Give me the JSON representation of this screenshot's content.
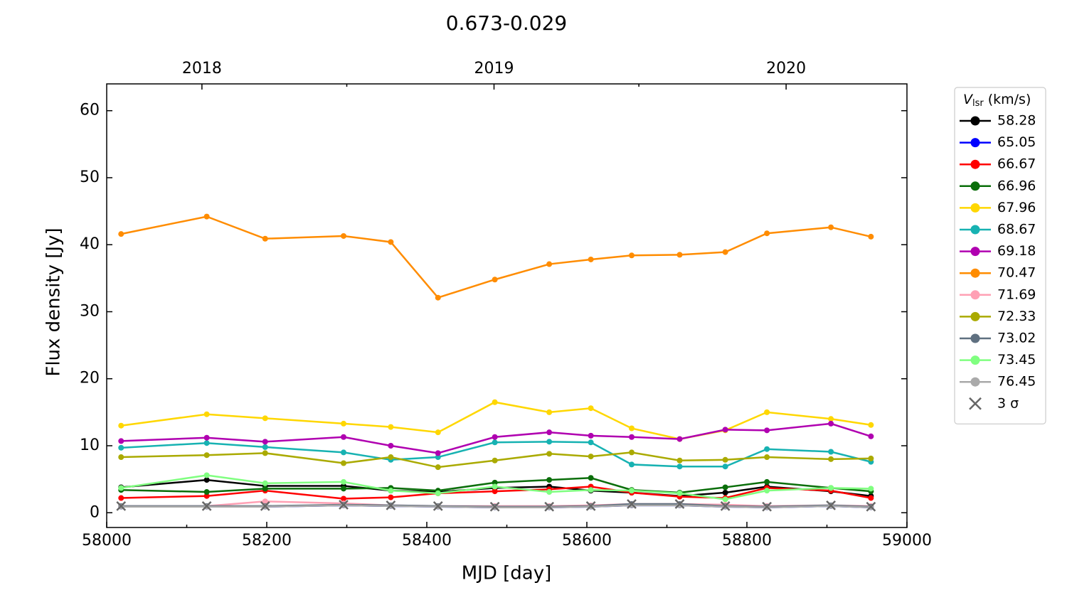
{
  "chart_data": {
    "type": "line",
    "title": "0.673-0.029",
    "x_label": "MJD [day]",
    "y_label": "Flux density [Jy]",
    "legend_title": {
      "symbol": "V",
      "subscript": "lsr",
      "unit": "(km/s)"
    },
    "legend_position": "outside right",
    "xlim": [
      58000,
      59000
    ],
    "xticks": [
      58000,
      58200,
      58400,
      58600,
      58800,
      59000
    ],
    "xminor_ticks": [
      58100,
      58300,
      58500,
      58700,
      58900
    ],
    "x2ticks": [
      {
        "value": 58119,
        "label": "2018"
      },
      {
        "value": 58484,
        "label": "2019"
      },
      {
        "value": 58849,
        "label": "2020"
      }
    ],
    "x2minor_ticks": [
      58300,
      58665
    ],
    "ylim": [
      -2.2,
      64
    ],
    "yticks": [
      0,
      10,
      20,
      30,
      40,
      50,
      60
    ],
    "x": [
      58018,
      58125,
      58198,
      58296,
      58355,
      58414,
      58485,
      58553,
      58605,
      58656,
      58716,
      58773,
      58825,
      58905,
      58955
    ],
    "series": [
      {
        "name": "58.28",
        "color": "#000000",
        "values": [
          3.8,
          4.9,
          4.0,
          4.0,
          3.3,
          3.1,
          3.7,
          3.9,
          3.3,
          3.0,
          2.5,
          3.0,
          3.9,
          3.2,
          2.5
        ]
      },
      {
        "name": "65.05",
        "color": "#0000ff",
        "values": [
          0.9,
          0.9,
          0.9,
          1.1,
          1.0,
          0.9,
          0.8,
          0.8,
          0.9,
          1.1,
          1.1,
          0.9,
          0.8,
          1.0,
          0.8
        ]
      },
      {
        "name": "66.67",
        "color": "#ff0000",
        "values": [
          2.2,
          2.5,
          3.3,
          2.1,
          2.3,
          2.9,
          3.2,
          3.5,
          3.9,
          3.0,
          2.4,
          2.2,
          3.7,
          3.3,
          2.2
        ]
      },
      {
        "name": "66.96",
        "color": "#0a6e0a",
        "values": [
          3.4,
          3.1,
          3.6,
          3.6,
          3.7,
          3.3,
          4.5,
          4.9,
          5.2,
          3.4,
          3.0,
          3.8,
          4.6,
          3.7,
          3.2
        ]
      },
      {
        "name": "67.96",
        "color": "#ffd700",
        "values": [
          13.0,
          14.7,
          14.1,
          13.3,
          12.8,
          12.0,
          16.5,
          15.0,
          15.6,
          12.6,
          11.0,
          12.3,
          15.0,
          14.0,
          13.1
        ]
      },
      {
        "name": "68.67",
        "color": "#17b2b2",
        "values": [
          9.7,
          10.4,
          9.8,
          9.0,
          7.9,
          8.3,
          10.5,
          10.6,
          10.5,
          7.2,
          6.9,
          6.9,
          9.5,
          9.1,
          7.6
        ]
      },
      {
        "name": "69.18",
        "color": "#b000b0",
        "values": [
          10.7,
          11.2,
          10.6,
          11.3,
          10.0,
          8.9,
          11.3,
          12.0,
          11.5,
          11.3,
          11.0,
          12.4,
          12.3,
          13.3,
          11.4
        ]
      },
      {
        "name": "70.47",
        "color": "#ff8c00",
        "values": [
          41.6,
          44.2,
          40.9,
          41.3,
          40.4,
          32.1,
          34.8,
          37.1,
          37.8,
          38.4,
          38.5,
          38.9,
          41.7,
          42.6,
          41.2
        ]
      },
      {
        "name": "71.69",
        "color": "#ffa0b4",
        "values": [
          1.0,
          1.0,
          1.7,
          1.4,
          1.1,
          1.0,
          1.0,
          1.0,
          1.1,
          1.3,
          1.3,
          1.2,
          1.0,
          1.1,
          1.0
        ]
      },
      {
        "name": "72.33",
        "color": "#aaaa00",
        "values": [
          8.3,
          8.6,
          8.9,
          7.4,
          8.3,
          6.8,
          7.8,
          8.8,
          8.4,
          9.0,
          7.8,
          7.9,
          8.3,
          8.0,
          8.1
        ]
      },
      {
        "name": "73.02",
        "color": "#5f7080",
        "values": [
          1.0,
          1.0,
          1.0,
          1.2,
          1.1,
          1.0,
          0.9,
          0.9,
          1.0,
          1.3,
          1.3,
          1.0,
          0.9,
          1.1,
          0.9
        ]
      },
      {
        "name": "73.45",
        "color": "#80ff80",
        "values": [
          3.7,
          5.6,
          4.4,
          4.6,
          3.3,
          2.9,
          3.9,
          3.1,
          3.4,
          3.3,
          2.9,
          2.0,
          3.3,
          3.7,
          3.6
        ]
      },
      {
        "name": "76.45",
        "color": "#aaaaaa",
        "values": [
          0.9,
          0.9,
          0.9,
          1.1,
          1.0,
          0.9,
          0.8,
          0.8,
          0.9,
          1.1,
          1.1,
          0.9,
          0.8,
          1.0,
          0.8
        ]
      },
      {
        "name": "3 σ",
        "color": "#666666",
        "marker": "x",
        "values": [
          1.0,
          1.0,
          1.0,
          1.2,
          1.1,
          1.0,
          0.9,
          0.9,
          1.0,
          1.3,
          1.3,
          1.0,
          0.9,
          1.1,
          0.9
        ]
      }
    ]
  }
}
